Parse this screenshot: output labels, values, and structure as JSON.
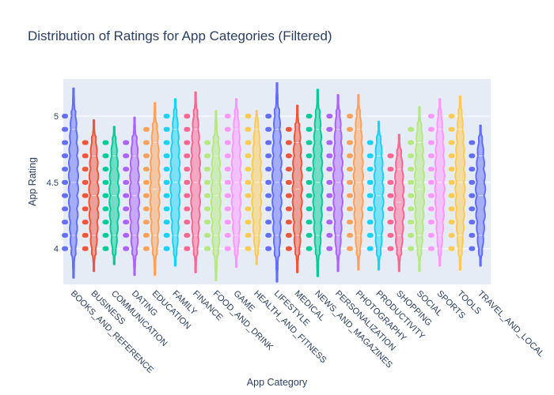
{
  "chart_data": {
    "type": "violin",
    "title": "Distribution of Ratings for App Categories (Filtered)",
    "xlabel": "App Category",
    "ylabel": "App Rating",
    "ylim": [
      3.73,
      5.28
    ],
    "yticks": [
      4,
      4.5,
      5
    ],
    "grid": true,
    "legend": "none",
    "background": "#e5ecf6",
    "point_levels": [
      4.0,
      4.1,
      4.2,
      4.3,
      4.4,
      4.5,
      4.6,
      4.7,
      4.8,
      4.9,
      5.0
    ],
    "categories": [
      "BOOKS_AND_REFERENCE",
      "BUSINESS",
      "COMMUNICATION",
      "DATING",
      "EDUCATION",
      "FAMILY",
      "FINANCE",
      "FOOD_AND_DRINK",
      "GAME",
      "HEALTH_AND_FITNESS",
      "LIFESTYLE",
      "MEDICAL",
      "NEWS_AND_MAGAZINES",
      "PERSONALIZATION",
      "PHOTOGRAPHY",
      "PRODUCTIVITY",
      "SHOPPING",
      "SOCIAL",
      "SPORTS",
      "TOOLS",
      "TRAVEL_AND_LOCAL"
    ],
    "series": [
      {
        "color": "#636efa",
        "min": 4.0,
        "max": 5.0,
        "kde_low": 3.78,
        "kde_high": 5.21
      },
      {
        "color": "#ef553b",
        "min": 4.0,
        "max": 4.8,
        "kde_low": 3.83,
        "kde_high": 4.97
      },
      {
        "color": "#00cc96",
        "min": 4.0,
        "max": 4.8,
        "kde_low": 3.88,
        "kde_high": 4.92
      },
      {
        "color": "#ab63fa",
        "min": 4.0,
        "max": 4.8,
        "kde_low": 3.8,
        "kde_high": 4.99
      },
      {
        "color": "#ffa15a",
        "min": 4.0,
        "max": 4.9,
        "kde_low": 3.8,
        "kde_high": 5.1
      },
      {
        "color": "#19d3f3",
        "min": 4.0,
        "max": 5.0,
        "kde_low": 3.87,
        "kde_high": 5.13
      },
      {
        "color": "#ff6692",
        "min": 4.0,
        "max": 5.0,
        "kde_low": 3.82,
        "kde_high": 5.18
      },
      {
        "color": "#b6e880",
        "min": 4.0,
        "max": 4.8,
        "kde_low": 3.76,
        "kde_high": 5.04
      },
      {
        "color": "#ff97ff",
        "min": 4.0,
        "max": 5.0,
        "kde_low": 3.86,
        "kde_high": 5.13
      },
      {
        "color": "#fecb52",
        "min": 4.0,
        "max": 5.0,
        "kde_low": 3.88,
        "kde_high": 5.04
      },
      {
        "color": "#636efa",
        "min": 4.0,
        "max": 5.0,
        "kde_low": 3.75,
        "kde_high": 5.25
      },
      {
        "color": "#ef553b",
        "min": 4.0,
        "max": 4.9,
        "kde_low": 3.82,
        "kde_high": 5.08
      },
      {
        "color": "#00cc96",
        "min": 4.0,
        "max": 5.0,
        "kde_low": 3.79,
        "kde_high": 5.2
      },
      {
        "color": "#ab63fa",
        "min": 4.0,
        "max": 5.0,
        "kde_low": 3.83,
        "kde_high": 5.16
      },
      {
        "color": "#ffa15a",
        "min": 4.0,
        "max": 5.0,
        "kde_low": 3.84,
        "kde_high": 5.16
      },
      {
        "color": "#19d3f3",
        "min": 4.0,
        "max": 4.8,
        "kde_low": 3.84,
        "kde_high": 4.96
      },
      {
        "color": "#ff6692",
        "min": 4.0,
        "max": 4.7,
        "kde_low": 3.83,
        "kde_high": 4.86
      },
      {
        "color": "#b6e880",
        "min": 4.0,
        "max": 4.9,
        "kde_low": 3.83,
        "kde_high": 5.07
      },
      {
        "color": "#ff97ff",
        "min": 4.0,
        "max": 5.0,
        "kde_low": 3.87,
        "kde_high": 5.13
      },
      {
        "color": "#fecb52",
        "min": 4.0,
        "max": 5.0,
        "kde_low": 3.84,
        "kde_high": 5.15
      },
      {
        "color": "#636efa",
        "min": 4.0,
        "max": 4.8,
        "kde_low": 3.87,
        "kde_high": 4.93
      }
    ]
  }
}
